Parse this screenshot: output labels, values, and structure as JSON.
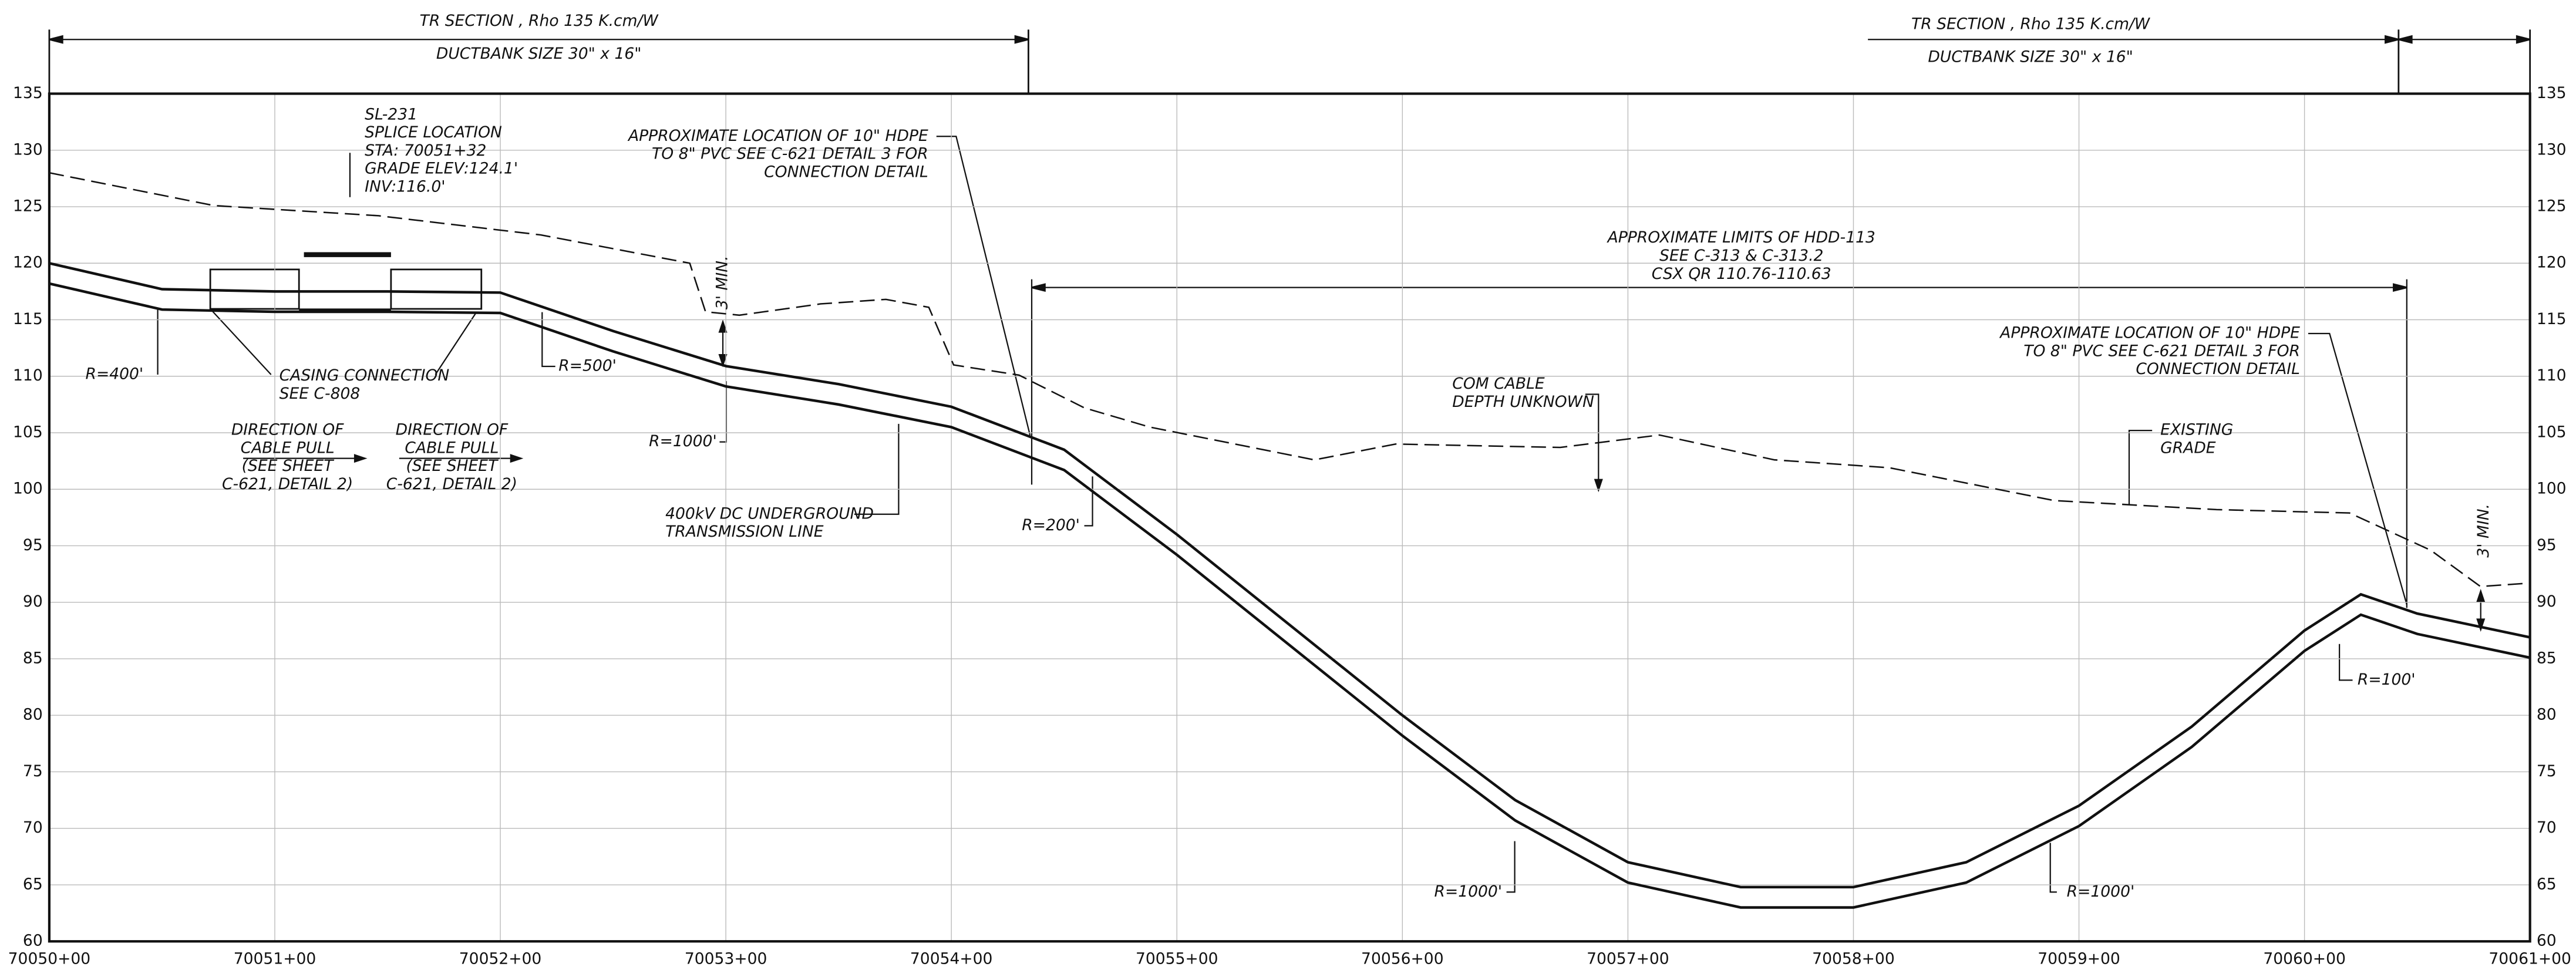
{
  "header": [
    {
      "title": "TR SECTION , Rho 135 K.cm/W",
      "subtitle": "DUCTBANK SIZE 30\" x 16\""
    },
    {
      "title": "TR SECTION , Rho 135 K.cm/W",
      "subtitle": "DUCTBANK SIZE 30\" x 16\""
    }
  ],
  "chart_data": {
    "type": "line",
    "xlim": [
      7005000,
      7006100
    ],
    "ylim": [
      60,
      135
    ],
    "xticks": [
      {
        "value": 7005000,
        "label": "70050+00"
      },
      {
        "value": 7005100,
        "label": "70051+00"
      },
      {
        "value": 7005200,
        "label": "70052+00"
      },
      {
        "value": 7005300,
        "label": "70053+00"
      },
      {
        "value": 7005400,
        "label": "70054+00"
      },
      {
        "value": 7005500,
        "label": "70055+00"
      },
      {
        "value": 7005600,
        "label": "70056+00"
      },
      {
        "value": 7005700,
        "label": "70057+00"
      },
      {
        "value": 7005800,
        "label": "70058+00"
      },
      {
        "value": 7005900,
        "label": "70059+00"
      },
      {
        "value": 7006000,
        "label": "70060+00"
      },
      {
        "value": 7006100,
        "label": "70061+00"
      }
    ],
    "yticks": [
      60,
      65,
      70,
      75,
      80,
      85,
      90,
      95,
      100,
      105,
      110,
      115,
      120,
      125,
      130,
      135
    ],
    "grid": true,
    "series": [
      {
        "color": "#111111",
        "dashed": true,
        "x": [
          7005000,
          7005073,
          7005146,
          7005218,
          7005284,
          7005291,
          7005306,
          7005342,
          7005371,
          7005390,
          7005401,
          7005430,
          7005459,
          7005488,
          7005561,
          7005597,
          7005670,
          7005714,
          7005765,
          7005816,
          7005889,
          7005961,
          7006020,
          7006056,
          7006078,
          7006100
        ],
        "values": [
          128.0,
          125.1,
          124.2,
          122.5,
          120.0,
          115.7,
          115.4,
          116.4,
          116.8,
          116.1,
          111.0,
          110.1,
          107.2,
          105.5,
          102.6,
          104.0,
          103.7,
          104.8,
          102.6,
          101.9,
          99.0,
          98.2,
          97.9,
          94.6,
          91.4,
          91.7
        ]
      },
      {
        "color": "#111111",
        "dashed": false,
        "x": [
          7005000,
          7005050,
          7005100,
          7005150,
          7005200,
          7005250,
          7005300,
          7005350,
          7005400,
          7005450,
          7005500,
          7005550,
          7005600,
          7005650,
          7005700,
          7005750,
          7005800,
          7005850,
          7005900,
          7005950,
          7006000,
          7006025,
          7006050,
          7006100
        ],
        "values": [
          120.0,
          117.7,
          117.5,
          117.5,
          117.4,
          114.0,
          110.9,
          109.3,
          107.3,
          103.5,
          96.0,
          88.0,
          80.0,
          72.5,
          67.0,
          64.8,
          64.8,
          67.0,
          72.0,
          79.0,
          87.5,
          90.7,
          89.0,
          86.9
        ]
      },
      {
        "color": "#111111",
        "dashed": false,
        "x": [
          7005000,
          7005050,
          7005100,
          7005150,
          7005200,
          7005250,
          7005300,
          7005350,
          7005400,
          7005450,
          7005500,
          7005550,
          7005600,
          7005650,
          7005700,
          7005750,
          7005800,
          7005850,
          7005900,
          7005950,
          7006000,
          7006025,
          7006050,
          7006100
        ],
        "values": [
          118.2,
          115.9,
          115.7,
          115.7,
          115.6,
          112.2,
          109.1,
          107.5,
          105.5,
          101.7,
          94.2,
          86.2,
          78.2,
          70.7,
          65.2,
          63.0,
          63.0,
          65.2,
          70.2,
          77.2,
          85.7,
          88.9,
          87.2,
          85.1
        ]
      }
    ],
    "annotations": [
      [
        "SL-231",
        "SPLICE LOCATION",
        "STA: 70051+32",
        "GRADE ELEV:124.1'",
        "INV:116.0'"
      ],
      [
        "APPROXIMATE LOCATION OF 10\" HDPE",
        "TO 8\" PVC SEE C-621 DETAIL 3 FOR",
        "CONNECTION DETAIL"
      ],
      [
        "APPROXIMATE LIMITS OF HDD-113",
        "SEE C-313 & C-313.2",
        "CSX QR 110.76-110.63"
      ],
      [
        "COM CABLE",
        "DEPTH UNKNOWN"
      ],
      [
        "APPROXIMATE LOCATION OF 10\" HDPE",
        "TO 8\" PVC SEE C-621 DETAIL 3 FOR",
        "CONNECTION DETAIL"
      ],
      [
        "EXISTING",
        "GRADE"
      ],
      [
        "R=400'"
      ],
      [
        "CASING CONNECTION",
        "SEE C-808"
      ],
      [
        "R=500'"
      ],
      [
        "DIRECTION OF",
        "CABLE PULL",
        "(SEE SHEET",
        "C-621, DETAIL 2)"
      ],
      [
        "DIRECTION OF",
        "CABLE PULL",
        "(SEE SHEET",
        "C-621, DETAIL 2)"
      ],
      [
        "R=1000'"
      ],
      [
        "400kV DC UNDERGROUND",
        "TRANSMISSION LINE"
      ],
      [
        "R=200'"
      ],
      [
        "R=1000'"
      ],
      [
        "R=1000'"
      ],
      [
        "R=100'"
      ],
      [
        "3' MIN."
      ],
      [
        "3' MIN."
      ]
    ]
  }
}
